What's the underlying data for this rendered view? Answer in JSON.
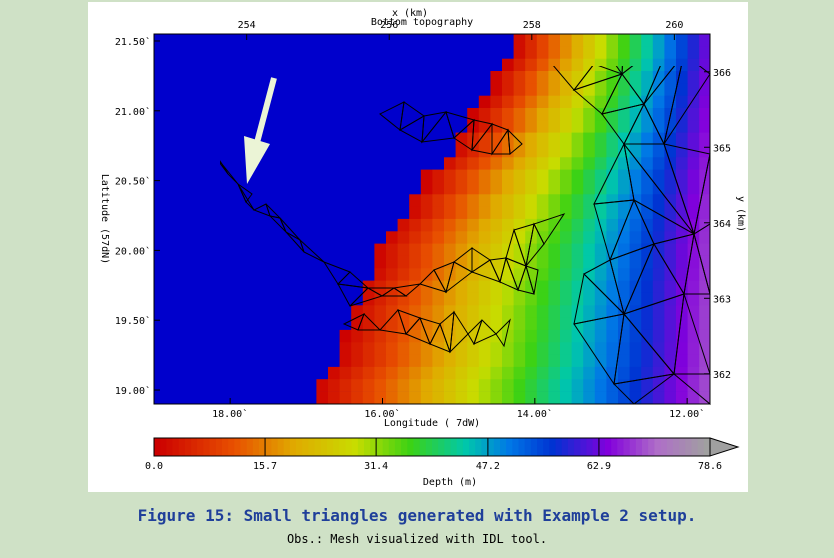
{
  "caption": "Figure 15: Small triangles generated with Example 2 setup.",
  "note": "Obs.: Mesh visualized with IDL tool.",
  "chart_data": {
    "type": "heatmap",
    "title": "Bottom topography",
    "top_axis": {
      "label": "x (km)",
      "ticks": [
        254,
        256,
        258,
        260
      ],
      "tick_labels": [
        "254",
        "256",
        "258",
        "260"
      ],
      "range": [
        252.7,
        260.5
      ]
    },
    "right_axis": {
      "label": "y (km)",
      "ticks": [
        362,
        363,
        364,
        365,
        366
      ],
      "tick_labels": [
        "362",
        "363",
        "364",
        "365",
        "366"
      ],
      "range": [
        361.6,
        366.5
      ]
    },
    "x_axis": {
      "label": "Longitude (  7dW)",
      "ticks": [
        18,
        16,
        14,
        12
      ],
      "tick_labels": [
        "18.00`",
        "16.00`",
        "14.00`",
        "12.00`"
      ],
      "range": [
        19.0,
        11.7
      ]
    },
    "y_axis": {
      "label": "Latitude (57dN)",
      "ticks": [
        19.0,
        19.5,
        20.0,
        20.5,
        21.0,
        21.5
      ],
      "tick_labels": [
        "19.00`",
        "19.50`",
        "20.00`",
        "20.50`",
        "21.00`",
        "21.50`"
      ],
      "range": [
        18.9,
        21.55
      ]
    },
    "colorbar": {
      "label": "Depth (m)",
      "min": 0.0,
      "max": 78.6,
      "ticks": [
        0.0,
        15.7,
        31.4,
        47.2,
        62.9,
        78.6
      ],
      "tick_labels": [
        "0.0",
        "15.7",
        "31.4",
        "47.2",
        "62.9",
        "78.6"
      ]
    },
    "colors": {
      "water": "#0000cc",
      "mesh": "#000000",
      "arrow": "#ebf4d6"
    }
  }
}
